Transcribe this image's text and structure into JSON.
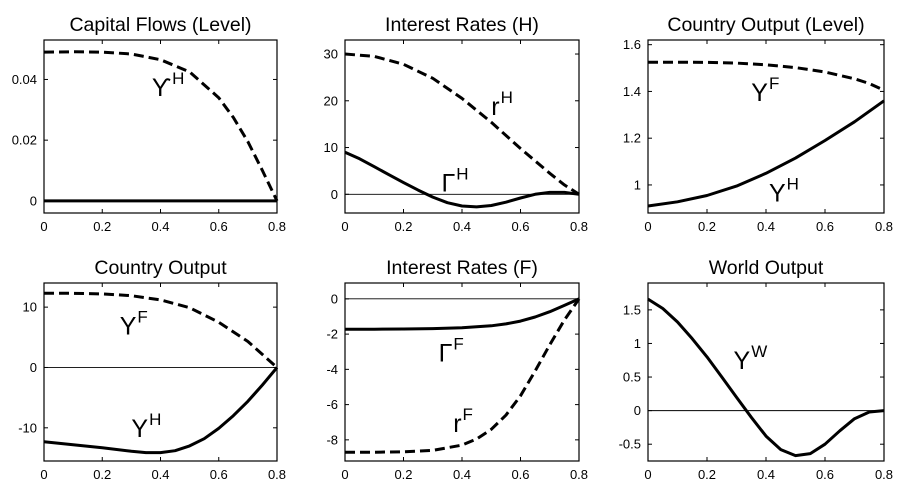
{
  "chart_data": [
    {
      "type": "line",
      "title": "Capital Flows (Level)",
      "xlim": [
        0,
        0.8
      ],
      "ylim": [
        -0.004,
        0.053
      ],
      "xticks": [
        "0",
        "0.2",
        "0.4",
        "0.6",
        "0.8"
      ],
      "yticks": [
        "0",
        "0.02",
        "0.04"
      ],
      "zero_line": false,
      "series": [
        {
          "style": "dashed",
          "x": [
            0,
            0.1,
            0.2,
            0.3,
            0.4,
            0.5,
            0.6,
            0.65,
            0.7,
            0.75,
            0.8
          ],
          "y": [
            0.049,
            0.0491,
            0.049,
            0.0484,
            0.0465,
            0.0425,
            0.034,
            0.0275,
            0.0195,
            0.01,
            0.0
          ]
        },
        {
          "style": "solid",
          "x": [
            0,
            0.8
          ],
          "y": [
            0.0,
            0.0
          ]
        }
      ],
      "annotations": [
        {
          "text": "ϒ",
          "sup": "H",
          "x": 0.37,
          "y": 0.0345
        }
      ]
    },
    {
      "type": "line",
      "title": "Interest Rates (H)",
      "xlim": [
        0,
        0.8
      ],
      "ylim": [
        -4,
        33
      ],
      "xticks": [
        "0",
        "0.2",
        "0.4",
        "0.6",
        "0.8"
      ],
      "yticks": [
        "0",
        "10",
        "20",
        "30"
      ],
      "zero_line": true,
      "series": [
        {
          "style": "dashed",
          "x": [
            0,
            0.1,
            0.2,
            0.3,
            0.4,
            0.5,
            0.6,
            0.7,
            0.75,
            0.8
          ],
          "y": [
            30,
            29.5,
            27.8,
            24.8,
            20.5,
            15.4,
            9.8,
            4.5,
            2.0,
            0.0
          ]
        },
        {
          "style": "solid",
          "x": [
            0,
            0.05,
            0.1,
            0.15,
            0.2,
            0.25,
            0.3,
            0.35,
            0.4,
            0.45,
            0.5,
            0.55,
            0.6,
            0.65,
            0.7,
            0.75,
            0.8
          ],
          "y": [
            9.0,
            7.6,
            5.9,
            4.2,
            2.5,
            0.9,
            -0.6,
            -1.8,
            -2.5,
            -2.7,
            -2.4,
            -1.7,
            -0.8,
            0.0,
            0.4,
            0.4,
            0.0
          ]
        }
      ],
      "annotations": [
        {
          "text": "r",
          "sup": "H",
          "x": 0.5,
          "y": 17.0
        },
        {
          "text": "Γ",
          "sup": "H",
          "x": 0.33,
          "y": 0.6
        }
      ]
    },
    {
      "type": "line",
      "title": "Country Output (Level)",
      "xlim": [
        0,
        0.8
      ],
      "ylim": [
        0.88,
        1.62
      ],
      "xticks": [
        "0",
        "0.2",
        "0.4",
        "0.6",
        "0.8"
      ],
      "yticks": [
        "1",
        "1.2",
        "1.4",
        "1.6"
      ],
      "zero_line": false,
      "series": [
        {
          "style": "dashed",
          "x": [
            0,
            0.1,
            0.2,
            0.3,
            0.4,
            0.5,
            0.6,
            0.7,
            0.75,
            0.8
          ],
          "y": [
            1.525,
            1.525,
            1.524,
            1.521,
            1.514,
            1.502,
            1.483,
            1.454,
            1.434,
            1.405
          ]
        },
        {
          "style": "solid",
          "x": [
            0,
            0.1,
            0.2,
            0.3,
            0.4,
            0.5,
            0.6,
            0.7,
            0.8
          ],
          "y": [
            0.91,
            0.928,
            0.955,
            0.995,
            1.05,
            1.115,
            1.19,
            1.27,
            1.36
          ]
        }
      ],
      "annotations": [
        {
          "text": "Y",
          "sup": "F",
          "x": 0.35,
          "y": 1.36
        },
        {
          "text": "Y",
          "sup": "H",
          "x": 0.41,
          "y": 0.93
        }
      ]
    },
    {
      "type": "line",
      "title": "Country Output",
      "xlim": [
        0,
        0.8
      ],
      "ylim": [
        -15.5,
        14
      ],
      "xticks": [
        "0",
        "0.2",
        "0.4",
        "0.6",
        "0.8"
      ],
      "yticks": [
        "-10",
        "0",
        "10"
      ],
      "zero_line": true,
      "series": [
        {
          "style": "dashed",
          "x": [
            0,
            0.1,
            0.2,
            0.3,
            0.4,
            0.5,
            0.6,
            0.7,
            0.8
          ],
          "y": [
            12.3,
            12.3,
            12.2,
            11.9,
            11.2,
            9.9,
            7.5,
            4.3,
            0.0
          ]
        },
        {
          "style": "solid",
          "x": [
            0,
            0.1,
            0.2,
            0.3,
            0.35,
            0.4,
            0.45,
            0.5,
            0.55,
            0.6,
            0.65,
            0.7,
            0.75,
            0.8
          ],
          "y": [
            -12.3,
            -12.8,
            -13.3,
            -13.9,
            -14.1,
            -14.1,
            -13.8,
            -13.0,
            -11.8,
            -10.1,
            -8.0,
            -5.6,
            -2.9,
            0.0
          ]
        }
      ],
      "annotations": [
        {
          "text": "Y",
          "sup": "F",
          "x": 0.26,
          "y": 5.5
        },
        {
          "text": "Y",
          "sup": "H",
          "x": 0.3,
          "y": -11.5
        }
      ]
    },
    {
      "type": "line",
      "title": "Interest Rates (F)",
      "xlim": [
        0,
        0.8
      ],
      "ylim": [
        -9.2,
        0.9
      ],
      "xticks": [
        "0",
        "0.2",
        "0.4",
        "0.6",
        "0.8"
      ],
      "yticks": [
        "-8",
        "-6",
        "-4",
        "-2",
        "0"
      ],
      "zero_line": true,
      "series": [
        {
          "style": "solid",
          "x": [
            0,
            0.1,
            0.2,
            0.3,
            0.4,
            0.5,
            0.55,
            0.6,
            0.65,
            0.7,
            0.75,
            0.8
          ],
          "y": [
            -1.72,
            -1.72,
            -1.71,
            -1.69,
            -1.64,
            -1.53,
            -1.42,
            -1.26,
            -1.03,
            -0.73,
            -0.37,
            0.0
          ]
        },
        {
          "style": "dashed",
          "x": [
            0,
            0.1,
            0.2,
            0.3,
            0.4,
            0.45,
            0.5,
            0.55,
            0.6,
            0.65,
            0.7,
            0.75,
            0.8
          ],
          "y": [
            -8.7,
            -8.7,
            -8.68,
            -8.6,
            -8.3,
            -7.95,
            -7.4,
            -6.6,
            -5.5,
            -4.1,
            -2.6,
            -1.2,
            0.0
          ]
        }
      ],
      "annotations": [
        {
          "text": "Γ",
          "sup": "F",
          "x": 0.32,
          "y": -3.55
        },
        {
          "text": "r",
          "sup": "F",
          "x": 0.37,
          "y": -7.55
        }
      ]
    },
    {
      "type": "line",
      "title": "World Output",
      "xlim": [
        0,
        0.8
      ],
      "ylim": [
        -0.75,
        1.9
      ],
      "xticks": [
        "0",
        "0.2",
        "0.4",
        "0.6",
        "0.8"
      ],
      "yticks": [
        "-0.5",
        "0",
        "0.5",
        "1",
        "1.5"
      ],
      "zero_line": true,
      "series": [
        {
          "style": "solid",
          "x": [
            0,
            0.05,
            0.1,
            0.15,
            0.2,
            0.25,
            0.3,
            0.35,
            0.4,
            0.45,
            0.5,
            0.55,
            0.6,
            0.65,
            0.7,
            0.75,
            0.8
          ],
          "y": [
            1.66,
            1.52,
            1.32,
            1.07,
            0.8,
            0.5,
            0.2,
            -0.1,
            -0.38,
            -0.58,
            -0.67,
            -0.64,
            -0.5,
            -0.3,
            -0.12,
            -0.02,
            0.0
          ]
        }
      ],
      "annotations": [
        {
          "text": "Y",
          "sup": "W",
          "x": 0.29,
          "y": 0.62
        }
      ]
    }
  ]
}
